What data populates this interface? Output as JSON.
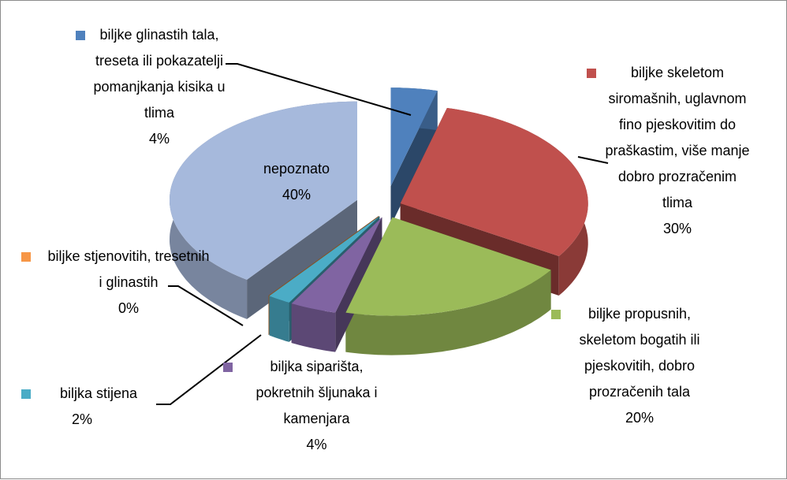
{
  "chart_data": {
    "type": "pie3d",
    "categories": [
      "biljke glinastih tala, treseta ili pokazatelji pomanjkanja kisika u tlima",
      "biljke skeletom siromašnih, uglavnom fino pjeskovitim do praškastim, više manje dobro prozračenim tlima",
      "biljke propusnih, skeletom bogatih ili pjeskovitih, dobro prozračenih tala",
      "biljka siparišta, pokretnih šljunaka i kamenjara",
      "biljka stijena",
      "biljke stjenovitih, tresetnih i glinastih",
      "nepoznato"
    ],
    "values": [
      4,
      30,
      20,
      4,
      2,
      0,
      40
    ],
    "value_labels": [
      "4%",
      "30%",
      "20%",
      "4%",
      "2%",
      "0%",
      "40%"
    ],
    "colors": [
      "#4f81bd",
      "#c0504d",
      "#9bbb59",
      "#8064a2",
      "#4bacc6",
      "#f79646",
      "#a6b9dc"
    ]
  }
}
